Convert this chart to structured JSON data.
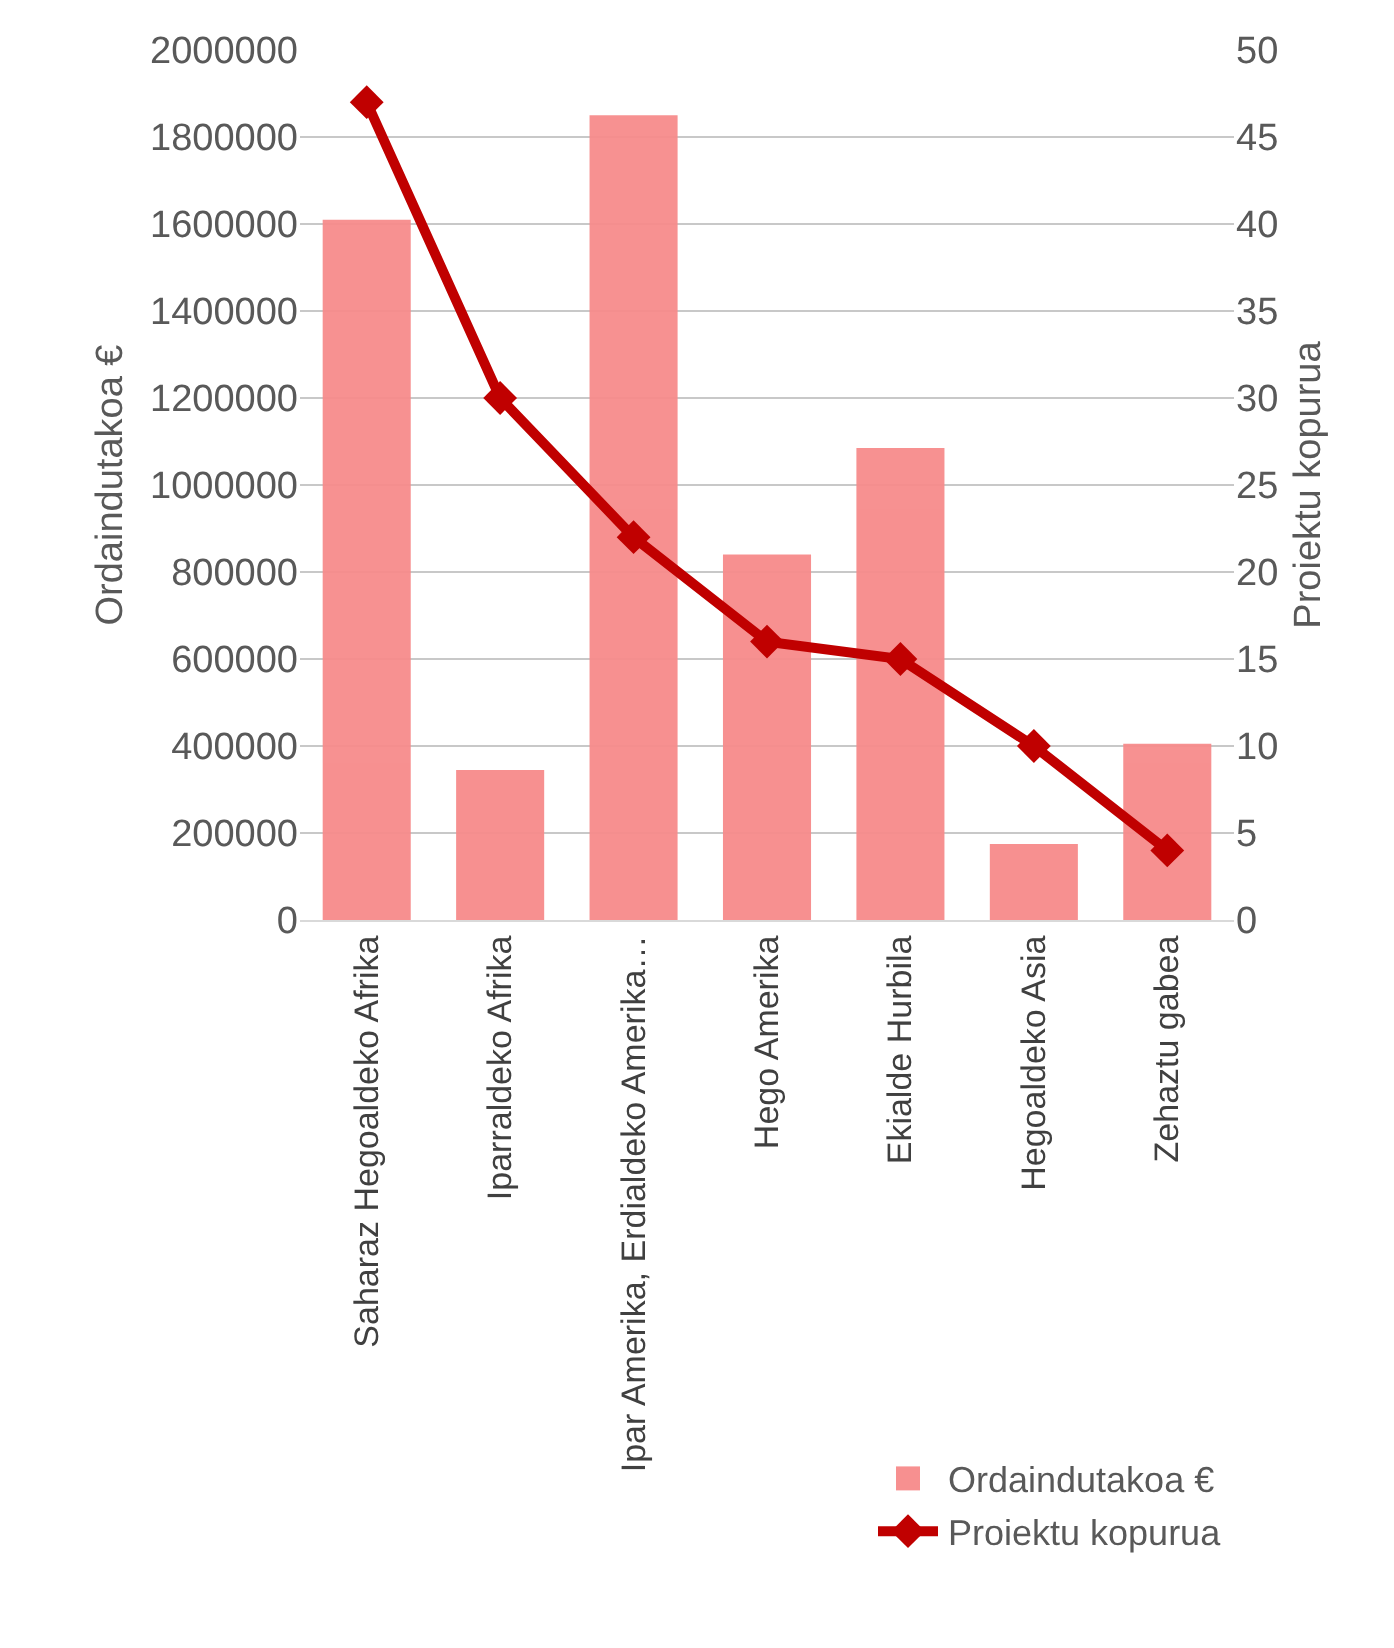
{
  "chart_data": {
    "type": "bar",
    "categories": [
      "Saharaz Hegoaldeko Afrika",
      "Iparraldeko Afrika",
      "Ipar Amerika, Erdialdeko Amerika…",
      "Hego Amerika",
      "Ekialde Hurbila",
      "Hegoaldeko Asia",
      "Zehaztu gabea"
    ],
    "series": [
      {
        "name": "Ordaindutakoa €",
        "color": "#f78b8b",
        "values": [
          1610000,
          345000,
          1850000,
          840000,
          1085000,
          175000,
          405000
        ]
      },
      {
        "name": "Proiektu kopurua",
        "type": "line",
        "axis": "y2",
        "color": "#c00000",
        "marker": "diamond",
        "values": [
          47,
          30,
          22,
          16,
          15,
          10,
          4
        ]
      }
    ],
    "ylabel": "Ordaindutakoa €",
    "y2label": "Proiektu kopurua",
    "ylim": [
      0,
      2000000
    ],
    "yticks": [
      0,
      200000,
      400000,
      600000,
      800000,
      1000000,
      1200000,
      1400000,
      1600000,
      1800000,
      2000000
    ],
    "y2lim": [
      0,
      50
    ],
    "y2ticks": [
      0,
      5,
      10,
      15,
      20,
      25,
      30,
      35,
      40,
      45,
      50
    ],
    "grid": "y",
    "legend": "bottom right"
  }
}
